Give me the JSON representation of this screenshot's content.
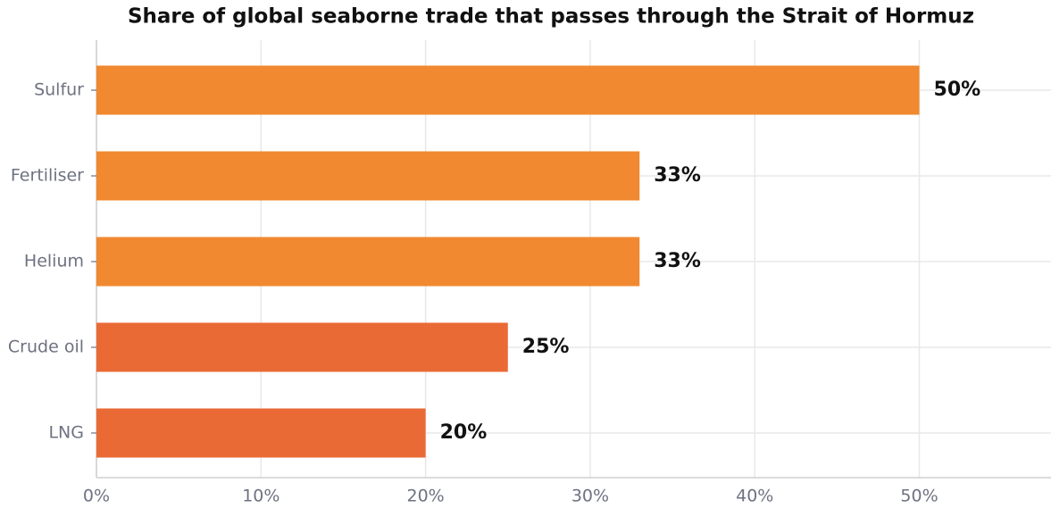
{
  "chart_data": {
    "type": "barh",
    "title": "Share of global seaborne trade that passes through the Strait of Hormuz",
    "categories": [
      "Sulfur",
      "Fertiliser",
      "Helium",
      "Crude oil",
      "LNG"
    ],
    "values": [
      50,
      33,
      33,
      25,
      20
    ],
    "value_labels": [
      "50%",
      "33%",
      "33%",
      "25%",
      "20%"
    ],
    "colors": [
      "#f0892f",
      "#f0892f",
      "#f0892f",
      "#ea6a35",
      "#ea6a35"
    ],
    "xlim": [
      0,
      58
    ],
    "xticks": [
      {
        "value": 0,
        "label": "0%"
      },
      {
        "value": 10,
        "label": "10%"
      },
      {
        "value": 20,
        "label": "20%"
      },
      {
        "value": 30,
        "label": "30%"
      },
      {
        "value": 40,
        "label": "40%"
      },
      {
        "value": 50,
        "label": "50%"
      }
    ],
    "grid": true
  }
}
